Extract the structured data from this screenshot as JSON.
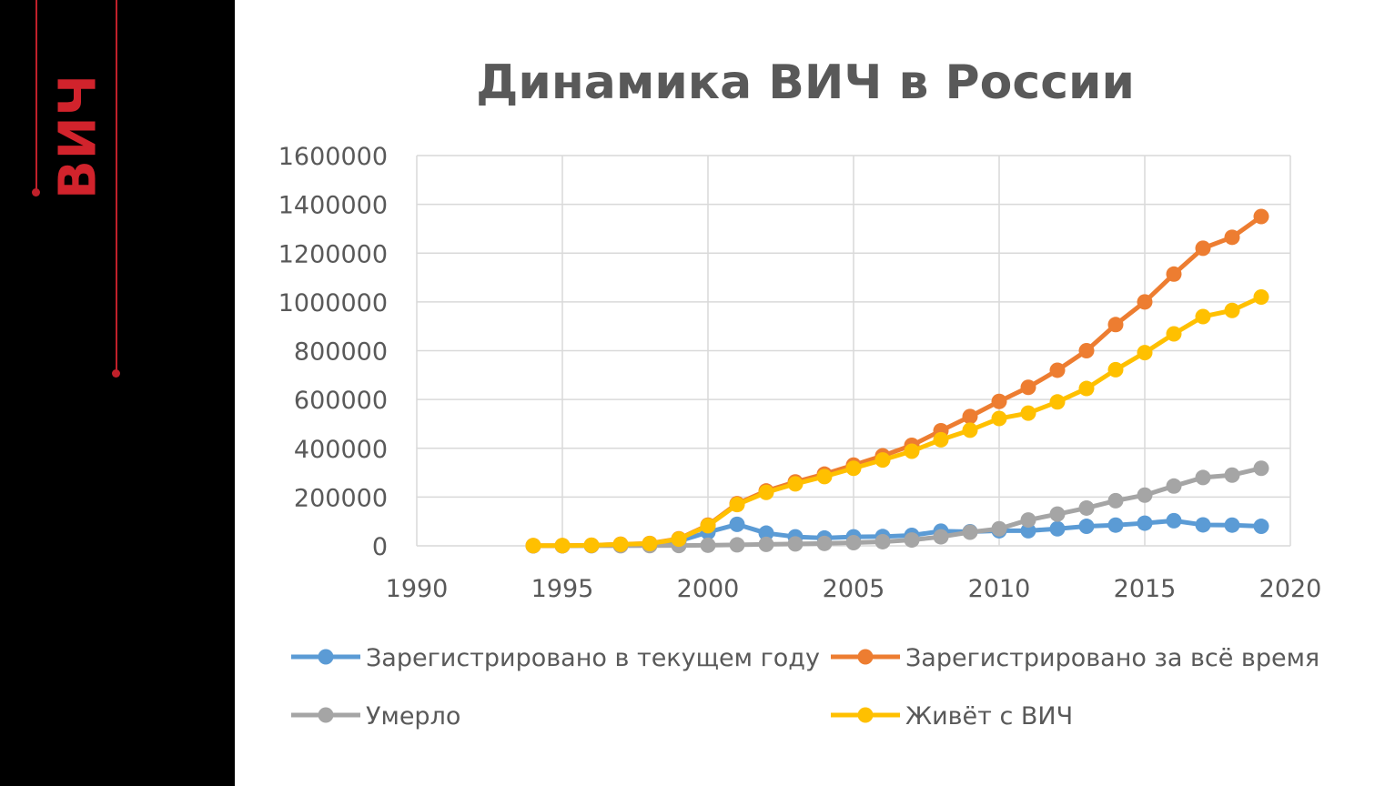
{
  "sidebar": {
    "title": "ВИЧ",
    "accent_color": "#d1232c"
  },
  "chart_data": {
    "type": "line",
    "title": "Динамика ВИЧ в России",
    "xlabel": "",
    "ylabel": "",
    "xlim": [
      1990,
      2020
    ],
    "ylim": [
      0,
      1600000
    ],
    "x_ticks": [
      1990,
      1995,
      2000,
      2005,
      2010,
      2015,
      2020
    ],
    "y_ticks": [
      0,
      200000,
      400000,
      600000,
      800000,
      1000000,
      1200000,
      1400000,
      1600000
    ],
    "grid": true,
    "legend_position": "bottom",
    "x": [
      1994,
      1995,
      1996,
      1997,
      1998,
      1999,
      2000,
      2001,
      2002,
      2003,
      2004,
      2005,
      2006,
      2007,
      2008,
      2009,
      2010,
      2011,
      2012,
      2013,
      2014,
      2015,
      2016,
      2017,
      2018,
      2019
    ],
    "series": [
      {
        "name": "Зарегистрировано в текущем году",
        "color": "#5b9bd5",
        "values": [
          200,
          200,
          1500,
          4000,
          3500,
          19000,
          56000,
          88000,
          52000,
          37000,
          32000,
          37000,
          38000,
          43000,
          60000,
          58000,
          62000,
          62000,
          70000,
          80000,
          85000,
          93000,
          103000,
          86000,
          85000,
          80000
        ]
      },
      {
        "name": "Зарегистрировано за всё время",
        "color": "#ed7d31",
        "values": [
          800,
          1000,
          2500,
          6500,
          10000,
          29000,
          85000,
          173000,
          225000,
          262000,
          294000,
          331000,
          369000,
          412000,
          472000,
          530000,
          592000,
          650000,
          720000,
          800000,
          907000,
          1000000,
          1114000,
          1220000,
          1265000,
          1350000
        ]
      },
      {
        "name": "Умерло",
        "color": "#a5a5a5",
        "values": [
          100,
          200,
          300,
          600,
          900,
          1500,
          2500,
          4000,
          6000,
          8000,
          10000,
          13000,
          17000,
          24000,
          37000,
          56000,
          70000,
          106000,
          130000,
          155000,
          185000,
          208000,
          245000,
          280000,
          290000,
          318000
        ]
      },
      {
        "name": "Живёт с ВИЧ",
        "color": "#ffc000",
        "values": [
          700,
          800,
          2200,
          5900,
          9100,
          27500,
          82500,
          169000,
          219000,
          254000,
          284000,
          318000,
          352000,
          388000,
          435000,
          474000,
          522000,
          544000,
          590000,
          645000,
          722000,
          792000,
          869000,
          940000,
          965000,
          1020000
        ]
      }
    ]
  }
}
